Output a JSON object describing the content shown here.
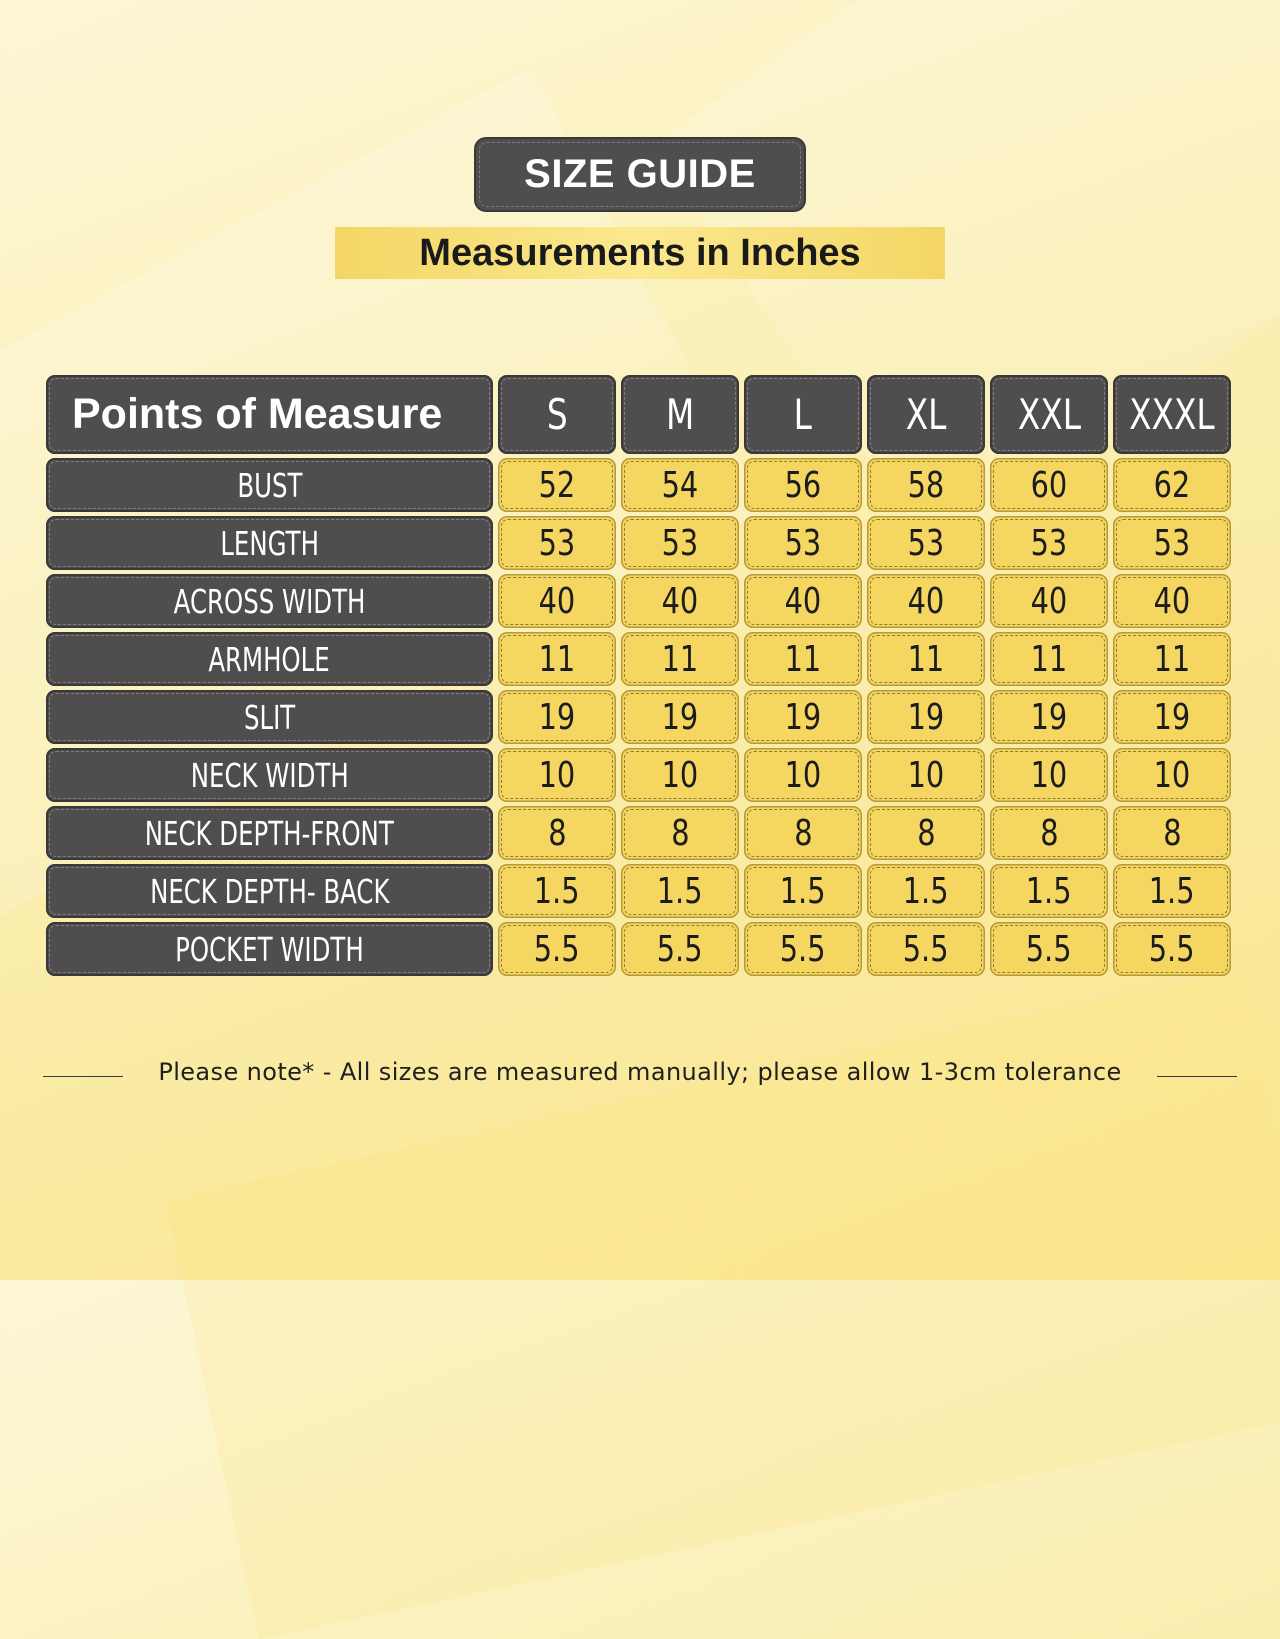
{
  "title": "SIZE GUIDE",
  "subtitle": "Measurements in Inches",
  "table": {
    "corner_label": "Points of Measure",
    "sizes": [
      "S",
      "M",
      "L",
      "XL",
      "XXL",
      "XXXL"
    ],
    "rows": [
      {
        "label": "BUST",
        "values": [
          "52",
          "54",
          "56",
          "58",
          "60",
          "62"
        ]
      },
      {
        "label": "LENGTH",
        "values": [
          "53",
          "53",
          "53",
          "53",
          "53",
          "53"
        ]
      },
      {
        "label": "ACROSS WIDTH",
        "values": [
          "40",
          "40",
          "40",
          "40",
          "40",
          "40"
        ]
      },
      {
        "label": "ARMHOLE",
        "values": [
          "11",
          "11",
          "11",
          "11",
          "11",
          "11"
        ]
      },
      {
        "label": "SLIT",
        "values": [
          "19",
          "19",
          "19",
          "19",
          "19",
          "19"
        ]
      },
      {
        "label": "NECK WIDTH",
        "values": [
          "10",
          "10",
          "10",
          "10",
          "10",
          "10"
        ]
      },
      {
        "label": "NECK DEPTH-FRONT",
        "values": [
          "8",
          "8",
          "8",
          "8",
          "8",
          "8"
        ]
      },
      {
        "label": "NECK DEPTH- BACK",
        "values": [
          "1.5",
          "1.5",
          "1.5",
          "1.5",
          "1.5",
          "1.5"
        ]
      },
      {
        "label": "POCKET WIDTH",
        "values": [
          "5.5",
          "5.5",
          "5.5",
          "5.5",
          "5.5",
          "5.5"
        ]
      }
    ]
  },
  "note": "Please note* - All sizes are measured manually; please allow 1-3cm tolerance",
  "colors": {
    "header_bg": "#4f4d4e",
    "value_bg": "#f4d660",
    "background": "#fbf0b8"
  }
}
